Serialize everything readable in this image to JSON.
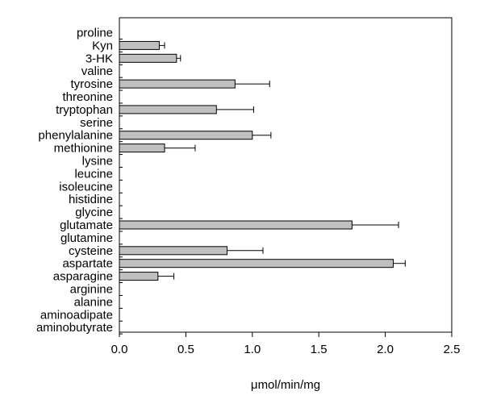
{
  "chart_data": {
    "type": "bar",
    "orientation": "horizontal",
    "xlabel": "μmol/min/mg",
    "ylabel": "",
    "title": "",
    "xlim": [
      0,
      2.5
    ],
    "xticks": [
      "0.0",
      "0.5",
      "1.0",
      "1.5",
      "2.0",
      "2.5"
    ],
    "grid": false,
    "bar_color": "#c0c0c0",
    "categories": [
      "proline",
      "Kyn",
      "3-HK",
      "valine",
      "tyrosine",
      "threonine",
      "tryptophan",
      "serine",
      "phenylalanine",
      "methionine",
      "lysine",
      "leucine",
      "isoleucine",
      "histidine",
      "glycine",
      "glutamate",
      "glutamine",
      "cysteine",
      "aspartate",
      "asparagine",
      "arginine",
      "alanine",
      "aminoadipate",
      "aminobutyrate"
    ],
    "values": [
      0,
      0.3,
      0.43,
      0,
      0.87,
      0,
      0.73,
      0,
      1.0,
      0.34,
      0,
      0,
      0,
      0,
      0,
      1.75,
      0,
      0.81,
      2.06,
      0.29,
      0,
      0,
      0,
      0
    ],
    "errors": [
      0,
      0.04,
      0.03,
      0,
      0.26,
      0,
      0.28,
      0,
      0.14,
      0.23,
      0,
      0,
      0,
      0,
      0,
      0.35,
      0,
      0.27,
      0.09,
      0.12,
      0,
      0,
      0,
      0
    ]
  }
}
